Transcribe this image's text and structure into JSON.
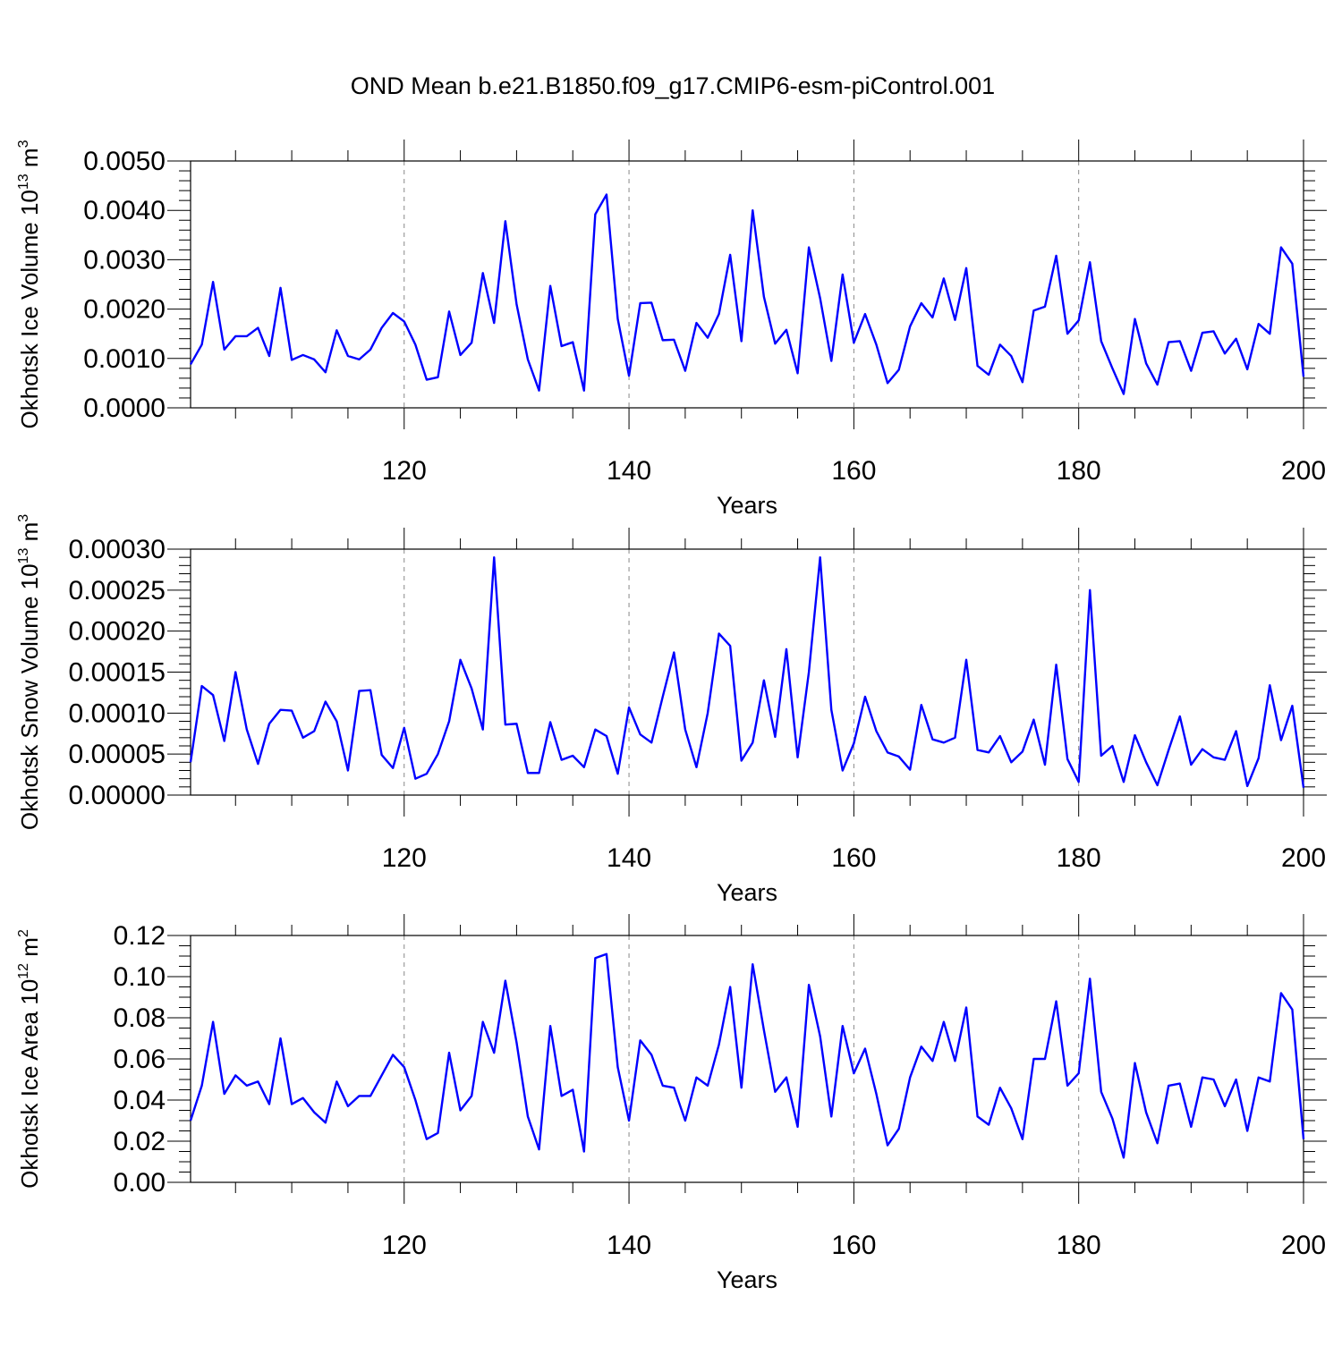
{
  "title": "OND Mean b.e21.B1850.f09_g17.CMIP6-esm-piControl.001",
  "colors": {
    "line": "#0000ff",
    "grid": "#888888",
    "axes": "#000000"
  },
  "chart_data": [
    {
      "type": "line",
      "ylabel_main": "Okhotsk Ice Volume 10",
      "ylabel_exp": "13",
      "ylabel_unit": " m",
      "ylabel_unit_exp": "3",
      "xlabel": "Years",
      "xlim": [
        101,
        200
      ],
      "ylim": [
        0,
        0.005
      ],
      "x_ticks": [
        120,
        140,
        160,
        180,
        200
      ],
      "x_tick_labels": [
        "120",
        "140",
        "160",
        "180",
        "200"
      ],
      "y_ticks": [
        0,
        0.001,
        0.002,
        0.003,
        0.004,
        0.005
      ],
      "y_tick_labels": [
        "0.0000",
        "0.0010",
        "0.0020",
        "0.0030",
        "0.0040",
        "0.0050"
      ],
      "y_minor_step": 0.0002,
      "x_start": 101,
      "values": [
        0.00088,
        0.00128,
        0.00255,
        0.00118,
        0.00145,
        0.00145,
        0.00162,
        0.00105,
        0.00243,
        0.00097,
        0.00107,
        0.00098,
        0.00072,
        0.00157,
        0.00105,
        0.00098,
        0.00118,
        0.00162,
        0.00192,
        0.00175,
        0.00128,
        0.00057,
        0.00062,
        0.00195,
        0.00107,
        0.00132,
        0.00273,
        0.00172,
        0.00378,
        0.0021,
        0.00098,
        0.00035,
        0.00247,
        0.00125,
        0.00133,
        0.00035,
        0.00392,
        0.00432,
        0.0018,
        0.00065,
        0.00212,
        0.00213,
        0.00137,
        0.00138,
        0.00075,
        0.00172,
        0.00142,
        0.0019,
        0.0031,
        0.00135,
        0.004,
        0.00225,
        0.0013,
        0.00158,
        0.0007,
        0.00325,
        0.00222,
        0.00095,
        0.0027,
        0.00132,
        0.0019,
        0.00128,
        0.0005,
        0.00077,
        0.00165,
        0.00212,
        0.00183,
        0.00262,
        0.00178,
        0.00283,
        0.00085,
        0.00067,
        0.00128,
        0.00105,
        0.00052,
        0.00197,
        0.00205,
        0.00308,
        0.0015,
        0.00177,
        0.00295,
        0.00135,
        0.0008,
        0.00028,
        0.0018,
        0.0009,
        0.00047,
        0.00133,
        0.00135,
        0.00075,
        0.00152,
        0.00155,
        0.0011,
        0.0014,
        0.00078,
        0.0017,
        0.0015,
        0.00325,
        0.00292,
        0.00063
      ]
    },
    {
      "type": "line",
      "ylabel_main": "Okhotsk Snow Volume 10",
      "ylabel_exp": "13",
      "ylabel_unit": " m",
      "ylabel_unit_exp": "3",
      "xlabel": "Years",
      "xlim": [
        101,
        200
      ],
      "ylim": [
        0,
        0.0003
      ],
      "x_ticks": [
        120,
        140,
        160,
        180,
        200
      ],
      "x_tick_labels": [
        "120",
        "140",
        "160",
        "180",
        "200"
      ],
      "y_ticks": [
        0,
        5e-05,
        0.0001,
        0.00015,
        0.0002,
        0.00025,
        0.0003
      ],
      "y_tick_labels": [
        "0.00000",
        "0.00005",
        "0.00010",
        "0.00015",
        "0.00020",
        "0.00025",
        "0.00030"
      ],
      "y_minor_step": 1e-05,
      "x_start": 101,
      "values": [
        4e-05,
        0.000133,
        0.000122,
        6.6e-05,
        0.00015,
        8e-05,
        3.8e-05,
        8.7e-05,
        0.000104,
        0.000103,
        7e-05,
        7.8e-05,
        0.000114,
        9e-05,
        3e-05,
        0.000127,
        0.000128,
        4.9e-05,
        3.3e-05,
        8.2e-05,
        2e-05,
        2.6e-05,
        5e-05,
        9e-05,
        0.000165,
        0.00013,
        8e-05,
        0.00029,
        8.6e-05,
        8.7e-05,
        2.7e-05,
        2.7e-05,
        8.9e-05,
        4.3e-05,
        4.8e-05,
        3.4e-05,
        8e-05,
        7.2e-05,
        2.6e-05,
        0.000107,
        7.4e-05,
        6.4e-05,
        0.00012,
        0.000174,
        8e-05,
        3.4e-05,
        0.0001,
        0.000197,
        0.000182,
        4.2e-05,
        6.4e-05,
        0.00014,
        7.1e-05,
        0.000178,
        4.6e-05,
        0.00015,
        0.00029,
        0.000104,
        3e-05,
        6.3e-05,
        0.00012,
        7.8e-05,
        5.2e-05,
        4.7e-05,
        3.1e-05,
        0.00011,
        6.8e-05,
        6.4e-05,
        7e-05,
        0.000165,
        5.5e-05,
        5.2e-05,
        7.2e-05,
        4e-05,
        5.3e-05,
        9.2e-05,
        3.7e-05,
        0.000159,
        4.4e-05,
        1.6e-05,
        0.00025,
        4.8e-05,
        6e-05,
        1.6e-05,
        7.3e-05,
        4e-05,
        1.2e-05,
        5.5e-05,
        9.6e-05,
        3.7e-05,
        5.6e-05,
        4.6e-05,
        4.3e-05,
        7.8e-05,
        1.1e-05,
        4.5e-05,
        0.000134,
        6.7e-05,
        0.000109,
        9e-06
      ]
    },
    {
      "type": "line",
      "ylabel_main": "Okhotsk Ice Area 10",
      "ylabel_exp": "12",
      "ylabel_unit": " m",
      "ylabel_unit_exp": "2",
      "xlabel": "Years",
      "xlim": [
        101,
        200
      ],
      "ylim": [
        0,
        0.12
      ],
      "x_ticks": [
        120,
        140,
        160,
        180,
        200
      ],
      "x_tick_labels": [
        "120",
        "140",
        "160",
        "180",
        "200"
      ],
      "y_ticks": [
        0,
        0.02,
        0.04,
        0.06,
        0.08,
        0.1,
        0.12
      ],
      "y_tick_labels": [
        "0.00",
        "0.02",
        "0.04",
        "0.06",
        "0.08",
        "0.10",
        "0.12"
      ],
      "y_minor_step": 0.005,
      "x_start": 101,
      "values": [
        0.03,
        0.047,
        0.078,
        0.043,
        0.052,
        0.047,
        0.049,
        0.038,
        0.07,
        0.038,
        0.041,
        0.034,
        0.029,
        0.049,
        0.037,
        0.042,
        0.042,
        0.052,
        0.062,
        0.056,
        0.04,
        0.021,
        0.024,
        0.063,
        0.035,
        0.042,
        0.078,
        0.063,
        0.098,
        0.068,
        0.032,
        0.016,
        0.076,
        0.042,
        0.045,
        0.015,
        0.109,
        0.111,
        0.056,
        0.03,
        0.069,
        0.062,
        0.047,
        0.046,
        0.03,
        0.051,
        0.047,
        0.067,
        0.095,
        0.046,
        0.106,
        0.074,
        0.044,
        0.051,
        0.027,
        0.096,
        0.071,
        0.032,
        0.076,
        0.053,
        0.065,
        0.043,
        0.018,
        0.026,
        0.051,
        0.066,
        0.059,
        0.078,
        0.059,
        0.085,
        0.032,
        0.028,
        0.046,
        0.036,
        0.021,
        0.06,
        0.06,
        0.088,
        0.047,
        0.053,
        0.099,
        0.044,
        0.031,
        0.012,
        0.058,
        0.034,
        0.019,
        0.047,
        0.048,
        0.027,
        0.051,
        0.05,
        0.037,
        0.05,
        0.025,
        0.051,
        0.049,
        0.092,
        0.084,
        0.021
      ]
    }
  ]
}
